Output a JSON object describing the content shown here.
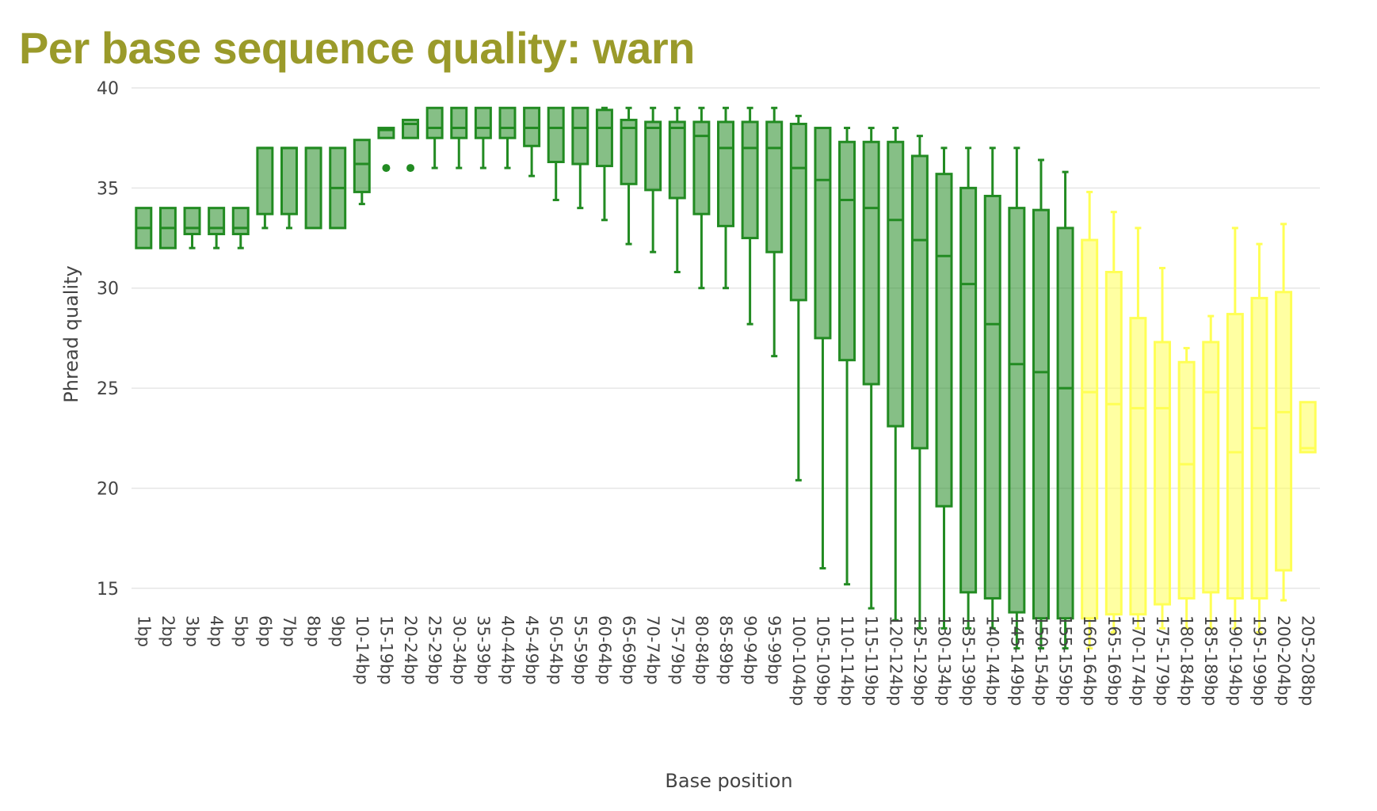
{
  "header": {
    "title": "Per base sequence quality: warn"
  },
  "chart_data": {
    "type": "box",
    "title": "Per base sequence quality: warn",
    "xlabel": "Base position",
    "ylabel": "Phread quality",
    "ylim": [
      10.6,
      40
    ],
    "yticks": [
      15,
      20,
      25,
      30,
      35,
      40
    ],
    "grid": true,
    "legend": "none",
    "colors": {
      "pass": "#228b22",
      "warn": "#ffff55"
    },
    "categories": [
      "1bp",
      "2bp",
      "3bp",
      "4bp",
      "5bp",
      "6bp",
      "7bp",
      "8bp",
      "9bp",
      "10-14bp",
      "15-19bp",
      "20-24bp",
      "25-29bp",
      "30-34bp",
      "35-39bp",
      "40-44bp",
      "45-49bp",
      "50-54bp",
      "55-59bp",
      "60-64bp",
      "65-69bp",
      "70-74bp",
      "75-79bp",
      "80-84bp",
      "85-89bp",
      "90-94bp",
      "95-99bp",
      "100-104bp",
      "105-109bp",
      "110-114bp",
      "115-119bp",
      "120-124bp",
      "125-129bp",
      "130-134bp",
      "135-139bp",
      "140-144bp",
      "145-149bp",
      "150-154bp",
      "155-159bp",
      "160-164bp",
      "165-169bp",
      "170-174bp",
      "175-179bp",
      "180-184bp",
      "185-189bp",
      "190-194bp",
      "195-199bp",
      "200-204bp",
      "205-208bp"
    ],
    "boxes": [
      {
        "low": 32,
        "q1": 32,
        "median": 33,
        "q3": 34,
        "high": 34,
        "status": "pass"
      },
      {
        "low": 32,
        "q1": 32,
        "median": 33,
        "q3": 34,
        "high": 34,
        "status": "pass"
      },
      {
        "low": 32,
        "q1": 32.7,
        "median": 33,
        "q3": 34,
        "high": 34,
        "status": "pass"
      },
      {
        "low": 32,
        "q1": 32.7,
        "median": 33,
        "q3": 34,
        "high": 34,
        "status": "pass"
      },
      {
        "low": 32,
        "q1": 32.7,
        "median": 33,
        "q3": 34,
        "high": 34,
        "status": "pass"
      },
      {
        "low": 33,
        "q1": 33.7,
        "median": 37,
        "q3": 37,
        "high": 37,
        "status": "pass"
      },
      {
        "low": 33,
        "q1": 33.7,
        "median": 37,
        "q3": 37,
        "high": 37,
        "status": "pass"
      },
      {
        "low": 33,
        "q1": 33,
        "median": 37,
        "q3": 37,
        "high": 37,
        "status": "pass"
      },
      {
        "low": 33,
        "q1": 33,
        "median": 35,
        "q3": 37,
        "high": 37,
        "status": "pass"
      },
      {
        "low": 34.2,
        "q1": 34.8,
        "median": 36.2,
        "q3": 37.4,
        "high": 37.4,
        "status": "pass"
      },
      {
        "low": 37.5,
        "q1": 37.5,
        "median": 37.9,
        "q3": 38,
        "high": 38,
        "status": "pass",
        "outliers": [
          36
        ]
      },
      {
        "low": 37.5,
        "q1": 37.5,
        "median": 38.2,
        "q3": 38.4,
        "high": 38.4,
        "status": "pass",
        "outliers": [
          36
        ]
      },
      {
        "low": 36,
        "q1": 37.5,
        "median": 38,
        "q3": 39,
        "high": 39,
        "status": "pass"
      },
      {
        "low": 36,
        "q1": 37.5,
        "median": 38,
        "q3": 39,
        "high": 39,
        "status": "pass"
      },
      {
        "low": 36,
        "q1": 37.5,
        "median": 38,
        "q3": 39,
        "high": 39,
        "status": "pass"
      },
      {
        "low": 36,
        "q1": 37.5,
        "median": 38,
        "q3": 39,
        "high": 39,
        "status": "pass"
      },
      {
        "low": 35.6,
        "q1": 37.1,
        "median": 38,
        "q3": 39,
        "high": 39,
        "status": "pass"
      },
      {
        "low": 34.4,
        "q1": 36.3,
        "median": 38,
        "q3": 39,
        "high": 39,
        "status": "pass"
      },
      {
        "low": 34,
        "q1": 36.2,
        "median": 38,
        "q3": 39,
        "high": 39,
        "status": "pass"
      },
      {
        "low": 33.4,
        "q1": 36.1,
        "median": 38,
        "q3": 38.9,
        "high": 39,
        "status": "pass"
      },
      {
        "low": 32.2,
        "q1": 35.2,
        "median": 38,
        "q3": 38.4,
        "high": 39,
        "status": "pass"
      },
      {
        "low": 31.8,
        "q1": 34.9,
        "median": 38,
        "q3": 38.3,
        "high": 39,
        "status": "pass"
      },
      {
        "low": 30.8,
        "q1": 34.5,
        "median": 38,
        "q3": 38.3,
        "high": 39,
        "status": "pass"
      },
      {
        "low": 30,
        "q1": 33.7,
        "median": 37.6,
        "q3": 38.3,
        "high": 39,
        "status": "pass"
      },
      {
        "low": 30,
        "q1": 33.1,
        "median": 37,
        "q3": 38.3,
        "high": 39,
        "status": "pass"
      },
      {
        "low": 28.2,
        "q1": 32.5,
        "median": 37,
        "q3": 38.3,
        "high": 39,
        "status": "pass"
      },
      {
        "low": 26.6,
        "q1": 31.8,
        "median": 37,
        "q3": 38.3,
        "high": 39,
        "status": "pass"
      },
      {
        "low": 20.4,
        "q1": 29.4,
        "median": 36,
        "q3": 38.2,
        "high": 38.6,
        "status": "pass"
      },
      {
        "low": 16,
        "q1": 27.5,
        "median": 35.4,
        "q3": 38,
        "high": 38,
        "status": "pass"
      },
      {
        "low": 15.2,
        "q1": 26.4,
        "median": 34.4,
        "q3": 37.3,
        "high": 38,
        "status": "pass"
      },
      {
        "low": 14,
        "q1": 25.2,
        "median": 34,
        "q3": 37.3,
        "high": 38,
        "status": "pass"
      },
      {
        "low": 13.4,
        "q1": 23.1,
        "median": 33.4,
        "q3": 37.3,
        "high": 38,
        "status": "pass"
      },
      {
        "low": 13,
        "q1": 22,
        "median": 32.4,
        "q3": 36.6,
        "high": 37.6,
        "status": "pass"
      },
      {
        "low": 13,
        "q1": 19.1,
        "median": 31.6,
        "q3": 35.7,
        "high": 37,
        "status": "pass"
      },
      {
        "low": 13,
        "q1": 14.8,
        "median": 30.2,
        "q3": 35,
        "high": 37,
        "status": "pass"
      },
      {
        "low": 13,
        "q1": 14.5,
        "median": 28.2,
        "q3": 34.6,
        "high": 37,
        "status": "pass"
      },
      {
        "low": 12,
        "q1": 13.8,
        "median": 26.2,
        "q3": 34,
        "high": 37,
        "status": "pass"
      },
      {
        "low": 12,
        "q1": 13.5,
        "median": 25.8,
        "q3": 33.9,
        "high": 36.4,
        "status": "pass"
      },
      {
        "low": 12,
        "q1": 13.5,
        "median": 25,
        "q3": 33,
        "high": 35.8,
        "status": "pass"
      },
      {
        "low": 12,
        "q1": 13.5,
        "median": 24.8,
        "q3": 32.4,
        "high": 34.8,
        "status": "warn"
      },
      {
        "low": 12.8,
        "q1": 13.7,
        "median": 24.2,
        "q3": 30.8,
        "high": 33.8,
        "status": "warn"
      },
      {
        "low": 13,
        "q1": 13.7,
        "median": 24,
        "q3": 28.5,
        "high": 33,
        "status": "warn"
      },
      {
        "low": 13,
        "q1": 14.2,
        "median": 24,
        "q3": 27.3,
        "high": 31,
        "status": "warn"
      },
      {
        "low": 13,
        "q1": 14.5,
        "median": 21.2,
        "q3": 26.3,
        "high": 27,
        "status": "warn"
      },
      {
        "low": 13,
        "q1": 14.8,
        "median": 24.8,
        "q3": 27.3,
        "high": 28.6,
        "status": "warn"
      },
      {
        "low": 13,
        "q1": 14.5,
        "median": 21.8,
        "q3": 28.7,
        "high": 33,
        "status": "warn"
      },
      {
        "low": 12.8,
        "q1": 14.5,
        "median": 23,
        "q3": 29.5,
        "high": 32.2,
        "status": "warn"
      },
      {
        "low": 14.4,
        "q1": 15.9,
        "median": 23.8,
        "q3": 29.8,
        "high": 33.2,
        "status": "warn"
      },
      {
        "low": 21.8,
        "q1": 21.8,
        "median": 22,
        "q3": 24.3,
        "high": 24.3,
        "status": "warn"
      }
    ]
  }
}
